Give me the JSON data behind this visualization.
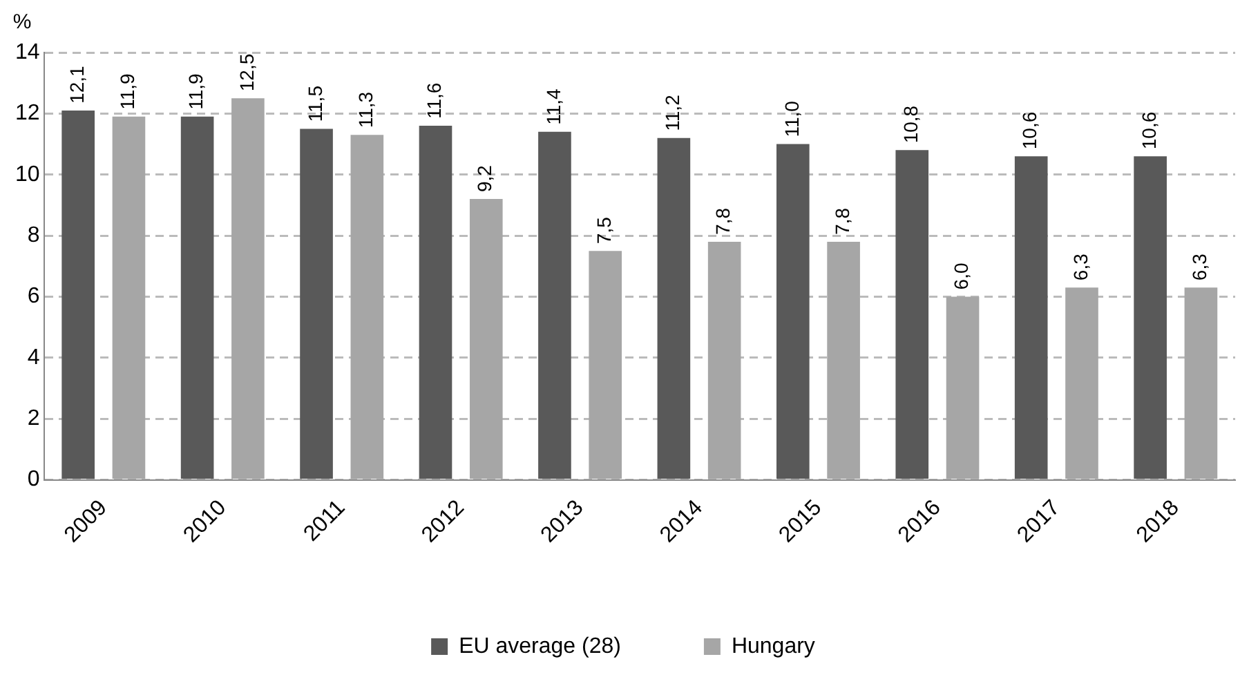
{
  "chart_data": {
    "type": "bar",
    "ylabel": "%",
    "categories": [
      "2009",
      "2010",
      "2011",
      "2012",
      "2013",
      "2014",
      "2015",
      "2016",
      "2017",
      "2018"
    ],
    "series": [
      {
        "name": "EU average (28)",
        "color": "#595959",
        "values": [
          12.1,
          11.9,
          11.5,
          11.6,
          11.4,
          11.2,
          11.0,
          10.8,
          10.6,
          10.6
        ],
        "value_labels": [
          "12,1",
          "11,9",
          "11,5",
          "11,6",
          "11,4",
          "11,2",
          "11,0",
          "10,8",
          "10,6",
          "10,6"
        ]
      },
      {
        "name": "Hungary",
        "color": "#a6a6a6",
        "values": [
          11.9,
          12.5,
          11.3,
          9.2,
          7.5,
          7.8,
          7.8,
          6.0,
          6.3,
          6.3
        ],
        "value_labels": [
          "11,9",
          "12,5",
          "11,3",
          "9,2",
          "7,5",
          "7,8",
          "7,8",
          "6,0",
          "6,3",
          "6,3"
        ]
      }
    ],
    "ylim": [
      0,
      14
    ],
    "yticks": [
      0,
      2,
      4,
      6,
      8,
      10,
      12,
      14
    ],
    "grid": "y",
    "legend": "bottom"
  }
}
